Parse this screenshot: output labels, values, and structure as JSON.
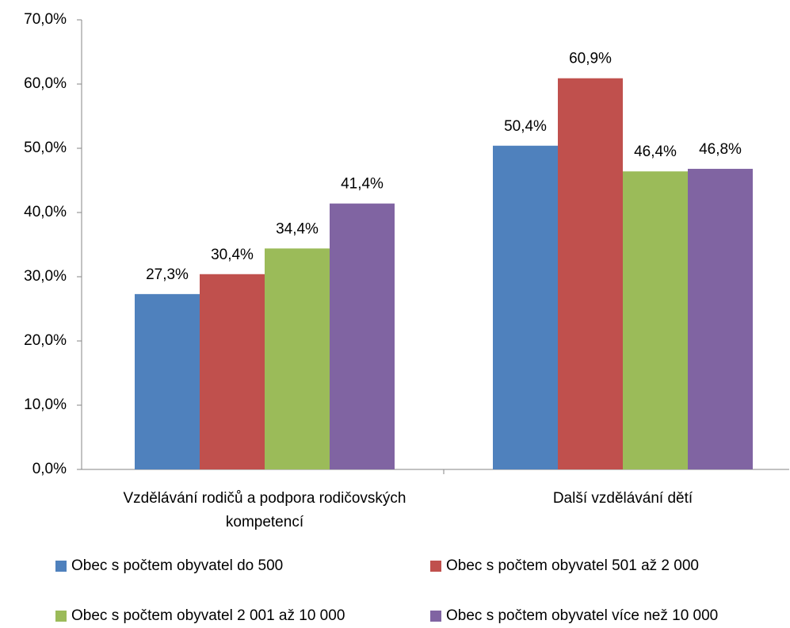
{
  "chart_data": {
    "type": "bar",
    "categories": [
      "Vzdělávání rodičů a podpora rodičovských kompetencí",
      "Další vzdělávání dětí"
    ],
    "series": [
      {
        "name": "Obec s počtem obyvatel do 500",
        "color": "#4f81bd",
        "values": [
          27.3,
          50.4
        ],
        "value_labels": [
          "27,3%",
          "50,4%"
        ]
      },
      {
        "name": "Obec s počtem obyvatel 501 až 2 000",
        "color": "#c0504d",
        "values": [
          30.4,
          60.9
        ],
        "value_labels": [
          "30,4%",
          "60,9%"
        ]
      },
      {
        "name": "Obec s počtem obyvatel 2 001 až 10 000",
        "color": "#9bbb59",
        "values": [
          34.4,
          46.4
        ],
        "value_labels": [
          "34,4%",
          "46,4%"
        ]
      },
      {
        "name": "Obec s počtem obyvatel více než 10 000",
        "color": "#8064a2",
        "values": [
          41.4,
          46.8
        ],
        "value_labels": [
          "41,4%",
          "46,8%"
        ]
      }
    ],
    "ylim": [
      0,
      70
    ],
    "yticks": [
      {
        "value": 0,
        "label": "0,0%"
      },
      {
        "value": 10,
        "label": "10,0%"
      },
      {
        "value": 20,
        "label": "20,0%"
      },
      {
        "value": 30,
        "label": "30,0%"
      },
      {
        "value": 40,
        "label": "40,0%"
      },
      {
        "value": 50,
        "label": "50,0%"
      },
      {
        "value": 60,
        "label": "60,0%"
      },
      {
        "value": 70,
        "label": "70,0%"
      }
    ],
    "grid": false,
    "legend": "bottom"
  }
}
